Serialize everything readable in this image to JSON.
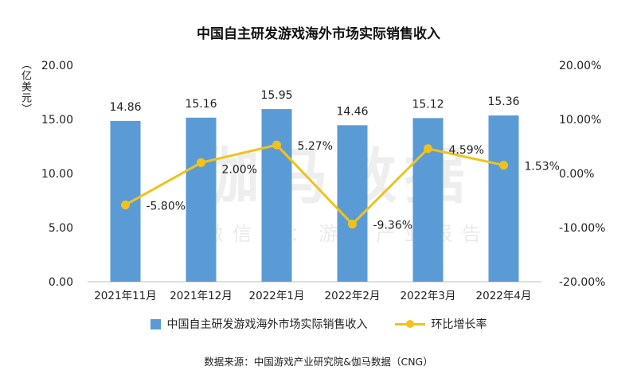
{
  "title": "中国自主研发游戏海外市场实际销售收入",
  "unit_label": "（亿美元）",
  "watermark": {
    "main": "伽马数据",
    "sub": "微信号：游戏产业报告"
  },
  "source": "数据来源：中国游戏产业研究院&伽马数据（CNG）",
  "colors": {
    "bar": "#5b9bd5",
    "line": "#f2c21b"
  },
  "chart_data": {
    "type": "bar",
    "title": "中国自主研发游戏海外市场实际销售收入",
    "categories": [
      "2021年11月",
      "2021年12月",
      "2022年1月",
      "2022年2月",
      "2022年3月",
      "2022年4月"
    ],
    "series": [
      {
        "name": "中国自主研发游戏海外市场实际销售收入",
        "type": "bar",
        "axis": "left",
        "values": [
          14.86,
          15.16,
          15.95,
          14.46,
          15.12,
          15.36
        ],
        "labels": [
          "14.86",
          "15.16",
          "15.95",
          "14.46",
          "15.12",
          "15.36"
        ]
      },
      {
        "name": "环比增长率",
        "type": "line",
        "axis": "right",
        "values": [
          -5.8,
          2.0,
          5.27,
          -9.36,
          4.59,
          1.53
        ],
        "labels": [
          "-5.80%",
          "2.00%",
          "5.27%",
          "-9.36%",
          "4.59%",
          "1.53%"
        ]
      }
    ],
    "y_left": {
      "min": 0,
      "max": 20,
      "ticks": [
        "0.00",
        "5.00",
        "10.00",
        "15.00",
        "20.00"
      ]
    },
    "y_right": {
      "min": -20,
      "max": 20,
      "ticks": [
        "-20.00%",
        "-10.00%",
        "0.00%",
        "10.00%",
        "20.00%"
      ]
    },
    "grid": false,
    "legend": "bottom"
  }
}
